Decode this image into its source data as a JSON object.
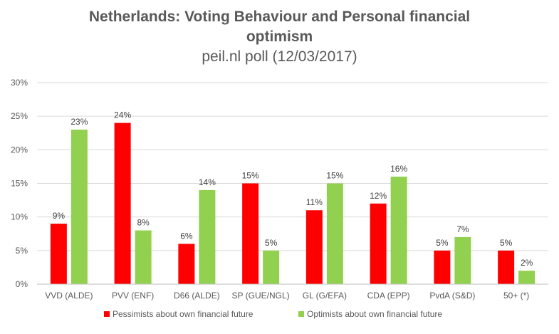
{
  "chart_data": {
    "type": "bar",
    "title": "Netherlands: Voting Behaviour and Personal financial optimism",
    "subtitle": "peil.nl poll (12/03/2017)",
    "xlabel": "",
    "ylabel": "",
    "ylim": [
      0,
      30
    ],
    "yticks": [
      "0%",
      "5%",
      "10%",
      "15%",
      "20%",
      "25%",
      "30%"
    ],
    "grid": true,
    "legend_position": "bottom",
    "categories": [
      "VVD (ALDE)",
      "PVV (ENF)",
      "D66 (ALDE)",
      "SP (GUE/NGL)",
      "GL (G/EFA)",
      "CDA (EPP)",
      "PvdA (S&D)",
      "50+ (*)"
    ],
    "series": [
      {
        "name": "Pessimists about own financial future",
        "color": "#ff0000",
        "values": [
          9,
          24,
          6,
          15,
          11,
          12,
          5,
          5
        ],
        "labels": [
          "9%",
          "24%",
          "6%",
          "15%",
          "11%",
          "12%",
          "5%",
          "5%"
        ]
      },
      {
        "name": "Optimists about own financial future",
        "color": "#92d050",
        "values": [
          23,
          8,
          14,
          5,
          15,
          16,
          7,
          2
        ],
        "labels": [
          "23%",
          "8%",
          "14%",
          "5%",
          "15%",
          "16%",
          "7%",
          "2%"
        ]
      }
    ]
  }
}
